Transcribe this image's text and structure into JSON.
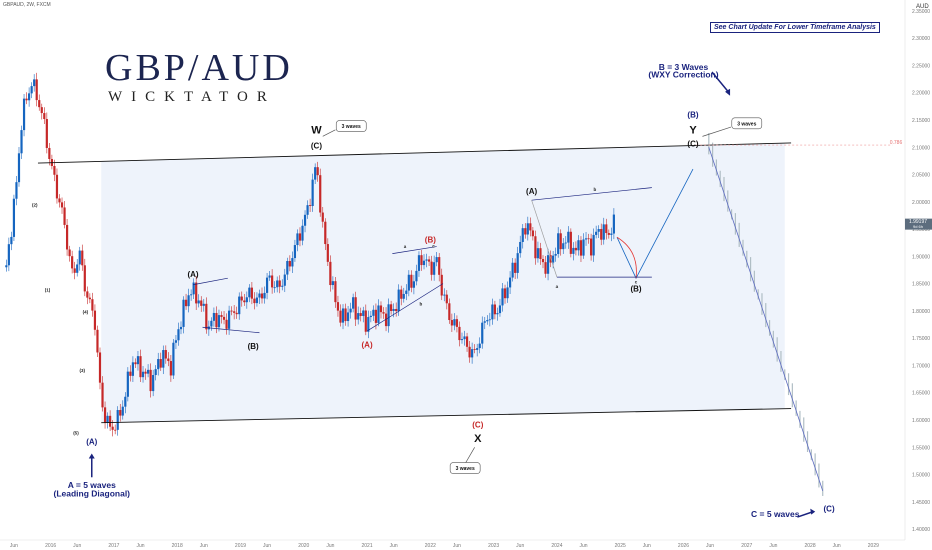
{
  "header": {
    "symbol_line": "GBPAUD, 2W, FXCM",
    "currency": "AUD",
    "note": "See Chart Update For Lower Timeframe Analysis"
  },
  "logo": {
    "main": "GBP/AUD",
    "sub": "WICKTATOR"
  },
  "price_tags": {
    "current": "1.99197",
    "current_sub": "9d 6h",
    "level": "0.786"
  },
  "chart_data": {
    "type": "candlestick",
    "title": "",
    "instrument": "GBPAUD",
    "timeframe": "2W",
    "xlabel": "",
    "ylabel": "AUD",
    "y_ticks": [
      "2.35000",
      "2.30000",
      "2.25000",
      "2.20000",
      "2.15000",
      "2.10000",
      "2.05000",
      "2.00000",
      "1.95000",
      "1.90000",
      "1.85000",
      "1.80000",
      "1.75000",
      "1.70000",
      "1.65000",
      "1.60000",
      "1.55000",
      "1.50000",
      "1.45000",
      "1.40000"
    ],
    "x_ticks": [
      "Jun",
      "2016",
      "Jun",
      "2017",
      "Jun",
      "2018",
      "Jun",
      "2019",
      "Jun",
      "2020",
      "Jun",
      "2021",
      "Jun",
      "2022",
      "Jun",
      "2023",
      "Jun",
      "2024",
      "Jun",
      "2025",
      "Jun",
      "2026",
      "Jun",
      "2027",
      "Jun",
      "2028",
      "Jun",
      "2029"
    ],
    "ylim": [
      1.38,
      2.37
    ],
    "xlim": [
      2015.2,
      2029.5
    ],
    "price_path": [
      [
        2015.3,
        1.88
      ],
      [
        2015.45,
        2.02
      ],
      [
        2015.55,
        2.16
      ],
      [
        2015.7,
        2.22
      ],
      [
        2015.85,
        2.17
      ],
      [
        2016.0,
        2.07
      ],
      [
        2016.2,
        1.97
      ],
      [
        2016.35,
        1.86
      ],
      [
        2016.45,
        1.91
      ],
      [
        2016.55,
        1.84
      ],
      [
        2016.7,
        1.78
      ],
      [
        2016.8,
        1.63
      ],
      [
        2016.95,
        1.58
      ],
      [
        2017.1,
        1.61
      ],
      [
        2017.3,
        1.71
      ],
      [
        2017.45,
        1.69
      ],
      [
        2017.6,
        1.67
      ],
      [
        2017.75,
        1.72
      ],
      [
        2017.9,
        1.7
      ],
      [
        2018.0,
        1.76
      ],
      [
        2018.2,
        1.84
      ],
      [
        2018.35,
        1.82
      ],
      [
        2018.5,
        1.77
      ],
      [
        2018.6,
        1.79
      ],
      [
        2018.75,
        1.78
      ],
      [
        2018.9,
        1.8
      ],
      [
        2019.1,
        1.83
      ],
      [
        2019.3,
        1.82
      ],
      [
        2019.45,
        1.86
      ],
      [
        2019.6,
        1.84
      ],
      [
        2019.75,
        1.88
      ],
      [
        2019.9,
        1.93
      ],
      [
        2020.05,
        1.98
      ],
      [
        2020.2,
        2.07
      ],
      [
        2020.3,
        1.95
      ],
      [
        2020.45,
        1.84
      ],
      [
        2020.6,
        1.78
      ],
      [
        2020.75,
        1.81
      ],
      [
        2020.9,
        1.79
      ],
      [
        2021.0,
        1.78
      ],
      [
        2021.15,
        1.8
      ],
      [
        2021.3,
        1.79
      ],
      [
        2021.45,
        1.81
      ],
      [
        2021.6,
        1.84
      ],
      [
        2021.75,
        1.86
      ],
      [
        2021.85,
        1.9
      ],
      [
        2022.0,
        1.88
      ],
      [
        2022.1,
        1.89
      ],
      [
        2022.2,
        1.83
      ],
      [
        2022.3,
        1.79
      ],
      [
        2022.45,
        1.76
      ],
      [
        2022.6,
        1.73
      ],
      [
        2022.7,
        1.72
      ],
      [
        2022.8,
        1.76
      ],
      [
        2022.9,
        1.79
      ],
      [
        2023.05,
        1.8
      ],
      [
        2023.2,
        1.84
      ],
      [
        2023.35,
        1.89
      ],
      [
        2023.5,
        1.96
      ],
      [
        2023.6,
        1.94
      ],
      [
        2023.7,
        1.9
      ],
      [
        2023.85,
        1.88
      ],
      [
        2024.0,
        1.92
      ],
      [
        2024.15,
        1.93
      ],
      [
        2024.3,
        1.91
      ],
      [
        2024.45,
        1.93
      ],
      [
        2024.55,
        1.92
      ],
      [
        2024.65,
        1.95
      ],
      [
        2024.8,
        1.94
      ],
      [
        2024.9,
        1.96
      ]
    ],
    "trend_lines": [
      {
        "name": "channel-top",
        "from": [
          2015.8,
          2.071
        ],
        "to": [
          2027.7,
          2.108
        ]
      },
      {
        "name": "channel-bottom",
        "from": [
          2016.8,
          1.595
        ],
        "to": [
          2027.7,
          1.621
        ]
      }
    ],
    "projection": {
      "path": [
        [
          2024.95,
          1.935
        ],
        [
          2025.25,
          1.86
        ],
        [
          2026.15,
          2.06
        ],
        [
          2026.4,
          2.1
        ],
        [
          2028.2,
          1.47
        ]
      ],
      "forecast_bars_from": 2026.4,
      "forecast_bars_to": 2028.2
    },
    "annotations": [
      {
        "text": "(A)",
        "x": 2016.65,
        "y": 1.555,
        "color": "#1a237e"
      },
      {
        "text": "A = 5 waves",
        "x": 2016.65,
        "y": 1.475,
        "color": "#1a237e"
      },
      {
        "text": "(Leading Diagonal)",
        "x": 2016.65,
        "y": 1.46,
        "color": "#1a237e"
      },
      {
        "text": "W",
        "x": 2020.2,
        "y": 2.125,
        "color": "#111111"
      },
      {
        "text": "(C)",
        "x": 2020.2,
        "y": 2.098,
        "color": "#111111"
      },
      {
        "text": "X",
        "x": 2022.75,
        "y": 1.56,
        "color": "#111111"
      },
      {
        "text": "(C)",
        "x": 2022.75,
        "y": 1.586,
        "color": "#c62828"
      },
      {
        "text": "(A)",
        "x": 2021.0,
        "y": 1.733,
        "color": "#c62828"
      },
      {
        "text": "(B)",
        "x": 2022.0,
        "y": 1.925,
        "color": "#c62828"
      },
      {
        "text": "(A)",
        "x": 2018.25,
        "y": 1.862,
        "color": "#111111"
      },
      {
        "text": "(B)",
        "x": 2019.2,
        "y": 1.73,
        "color": "#111111"
      },
      {
        "text": "(A)",
        "x": 2023.6,
        "y": 2.014,
        "color": "#111111"
      },
      {
        "text": "(B)",
        "x": 2025.25,
        "y": 1.836,
        "color": "#111111"
      },
      {
        "text": "B = 3 Waves",
        "x": 2026.0,
        "y": 2.242,
        "color": "#1a237e"
      },
      {
        "text": "(WXY Correction)",
        "x": 2026.0,
        "y": 2.228,
        "color": "#1a237e"
      },
      {
        "text": "(B)",
        "x": 2026.15,
        "y": 2.155,
        "color": "#1a237e"
      },
      {
        "text": "Y",
        "x": 2026.15,
        "y": 2.125,
        "color": "#111111"
      },
      {
        "text": "(C)",
        "x": 2026.15,
        "y": 2.101,
        "color": "#111111"
      },
      {
        "text": "C = 5 waves",
        "x": 2027.45,
        "y": 1.422,
        "color": "#1a237e"
      },
      {
        "text": "(C)",
        "x": 2028.3,
        "y": 1.432,
        "color": "#1a237e"
      }
    ],
    "small_labels": [
      {
        "text": "(2)",
        "x": 2015.75,
        "y": 1.991
      },
      {
        "text": "(1)",
        "x": 2015.95,
        "y": 1.836
      },
      {
        "text": "(4)",
        "x": 2016.55,
        "y": 1.795
      },
      {
        "text": "(3)",
        "x": 2016.5,
        "y": 1.688
      },
      {
        "text": "(5)",
        "x": 2016.4,
        "y": 1.573
      },
      {
        "text": "a",
        "x": 2021.6,
        "y": 1.915
      },
      {
        "text": "b",
        "x": 2021.85,
        "y": 1.81
      },
      {
        "text": "c",
        "x": 2022.05,
        "y": 1.916
      },
      {
        "text": "a",
        "x": 2024.0,
        "y": 1.842
      },
      {
        "text": "b",
        "x": 2024.6,
        "y": 2.02
      },
      {
        "text": "c",
        "x": 2025.25,
        "y": 1.85
      }
    ],
    "callouts": [
      {
        "text": "3 waves",
        "x": 2020.75,
        "y": 2.138
      },
      {
        "text": "3 waves",
        "x": 2022.55,
        "y": 1.511
      },
      {
        "text": "3 waves",
        "x": 2027.0,
        "y": 2.143
      }
    ],
    "grid": false,
    "background": "#ffffff",
    "colors": {
      "up": "#1565c0",
      "down": "#c62828",
      "channel_fill": "#eef3fb",
      "accent": "#1a237e"
    }
  }
}
